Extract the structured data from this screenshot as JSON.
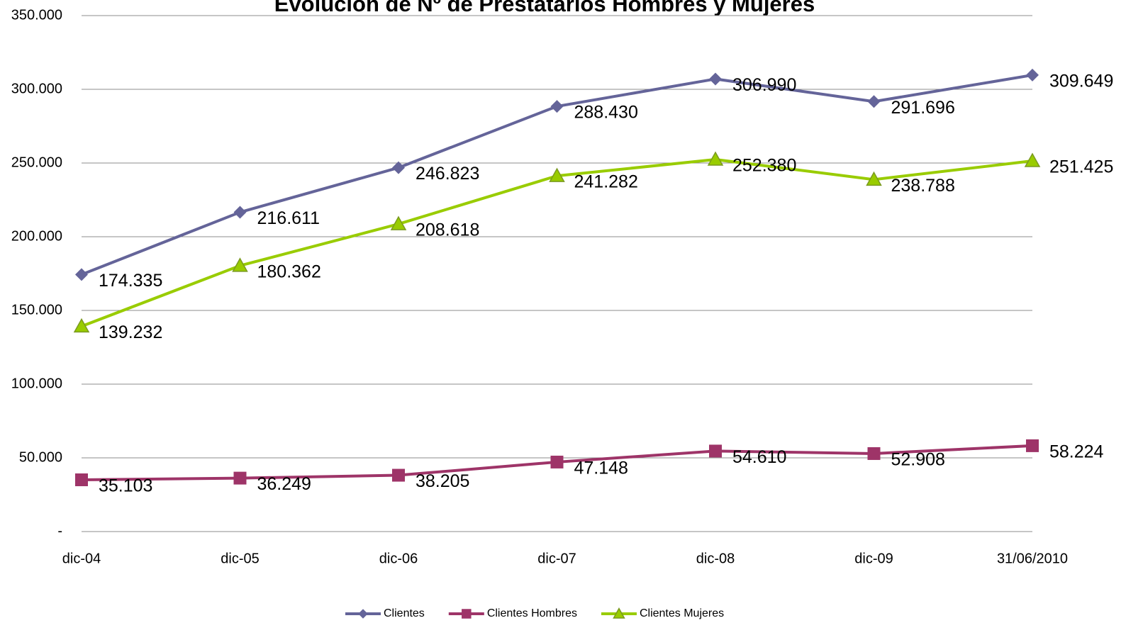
{
  "chart_data": {
    "type": "line",
    "title": "Evolución de Nº de Prestatarios Hombres y Mujeres",
    "categories": [
      "dic-04",
      "dic-05",
      "dic-06",
      "dic-07",
      "dic-08",
      "dic-09",
      "31/06/2010"
    ],
    "series": [
      {
        "name": "Clientes",
        "color": "#646499",
        "marker": "diamond",
        "values": [
          174335,
          216611,
          246823,
          288430,
          306990,
          291696,
          309649
        ],
        "value_labels": [
          "174.335",
          "216.611",
          "246.823",
          "288.430",
          "306.990",
          "291.696",
          "309.649"
        ]
      },
      {
        "name": "Clientes Hombres",
        "color": "#9e3468",
        "marker": "square",
        "values": [
          35103,
          36249,
          38205,
          47148,
          54610,
          52908,
          58224
        ],
        "value_labels": [
          "35.103",
          "36.249",
          "38.205",
          "47.148",
          "54.610",
          "52.908",
          "58.224"
        ]
      },
      {
        "name": "Clientes Mujeres",
        "color": "#99cc00",
        "marker": "triangle",
        "values": [
          139232,
          180362,
          208618,
          241282,
          252380,
          238788,
          251425
        ],
        "value_labels": [
          "139.232",
          "180.362",
          "208.618",
          "241.282",
          "252.380",
          "238.788",
          "251.425"
        ]
      }
    ],
    "ylim": [
      0,
      350000
    ],
    "yticks": [
      {
        "value": 0,
        "label": "-"
      },
      {
        "value": 50000,
        "label": "50.000"
      },
      {
        "value": 100000,
        "label": "100.000"
      },
      {
        "value": 150000,
        "label": "150.000"
      },
      {
        "value": 200000,
        "label": "200.000"
      },
      {
        "value": 250000,
        "label": "250.000"
      },
      {
        "value": 300000,
        "label": "300.000"
      },
      {
        "value": 350000,
        "label": "350.000"
      }
    ],
    "grid": true,
    "legend": "bottom"
  }
}
